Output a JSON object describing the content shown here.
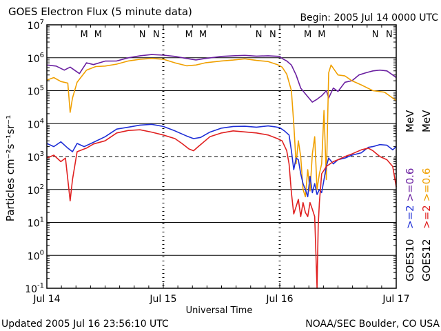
{
  "header": {
    "title": "GOES Electron Flux (5 minute data)",
    "begin": "Begin: 2005 Jul 14 0000 UTC"
  },
  "footer": {
    "updated": "Updated 2005 Jul 16 23:56:10 UTC",
    "source": "NOAA/SEC Boulder, CO USA"
  },
  "legend": {
    "goes10": "GOES10",
    "goes12": "GOES12",
    "mev_top": "MeV",
    "mev_bottom": "MeV",
    "series_labels": [
      {
        "text": ">=2",
        "color": "#1e2ed6"
      },
      {
        "text": ">=0.6",
        "color": "#6a1fa0"
      },
      {
        "text": ">=2",
        "color": "#e02020"
      },
      {
        "text": ">=0.6",
        "color": "#f0a000"
      }
    ]
  },
  "colors": {
    "goes10_2mev": "#1e2ed6",
    "goes10_06mev": "#6a1fa0",
    "goes12_2mev": "#e02020",
    "goes12_06mev": "#f0a000",
    "marker_M": "#c81e1e",
    "marker_N": "#1e2ec8"
  },
  "chart_data": {
    "type": "line",
    "title": "GOES Electron Flux (5 minute data)",
    "xlabel": "Universal Time",
    "ylabel": "Particles cm⁻²s⁻¹sr⁻¹",
    "y_scale": "log",
    "ylim": [
      0.1,
      10000000
    ],
    "xlim": [
      0,
      3
    ],
    "x_unit": "days since 2005 Jul 14 0000 UTC",
    "x_ticks": [
      {
        "x": 0,
        "label": "Jul 14"
      },
      {
        "x": 1,
        "label": "Jul 15"
      },
      {
        "x": 2,
        "label": "Jul 16"
      },
      {
        "x": 3,
        "label": "Jul 17"
      }
    ],
    "y_ticks": [
      {
        "value": 0.1,
        "base": "10",
        "exp": "-1"
      },
      {
        "value": 1,
        "base": "10",
        "exp": "0"
      },
      {
        "value": 10,
        "base": "10",
        "exp": "1"
      },
      {
        "value": 100,
        "base": "10",
        "exp": "2"
      },
      {
        "value": 1000,
        "base": "10",
        "exp": "3"
      },
      {
        "value": 10000,
        "base": "10",
        "exp": "4"
      },
      {
        "value": 100000,
        "base": "10",
        "exp": "5"
      },
      {
        "value": 1000000,
        "base": "10",
        "exp": "6"
      },
      {
        "value": 10000000,
        "base": "10",
        "exp": "7"
      }
    ],
    "grid": "horizontal at each decade; dashed line at 1000",
    "dashed_threshold": 1000,
    "markers": [
      {
        "x": 0.32,
        "label": "M",
        "kind": "M"
      },
      {
        "x": 0.44,
        "label": "M",
        "kind": "M"
      },
      {
        "x": 0.82,
        "label": "N",
        "kind": "N"
      },
      {
        "x": 0.94,
        "label": "N",
        "kind": "N"
      },
      {
        "x": 1.22,
        "label": "M",
        "kind": "M"
      },
      {
        "x": 1.34,
        "label": "M",
        "kind": "M"
      },
      {
        "x": 1.82,
        "label": "N",
        "kind": "N"
      },
      {
        "x": 1.94,
        "label": "N",
        "kind": "N"
      },
      {
        "x": 2.24,
        "label": "M",
        "kind": "M"
      },
      {
        "x": 2.36,
        "label": "M",
        "kind": "M"
      },
      {
        "x": 2.82,
        "label": "N",
        "kind": "N"
      },
      {
        "x": 2.94,
        "label": "N",
        "kind": "N"
      }
    ],
    "series": [
      {
        "name": "GOES10 >=0.6 MeV",
        "color": "#6a1fa0",
        "points": [
          [
            0,
            600000
          ],
          [
            0.08,
            560000
          ],
          [
            0.15,
            420000
          ],
          [
            0.2,
            520000
          ],
          [
            0.28,
            330000
          ],
          [
            0.34,
            700000
          ],
          [
            0.4,
            620000
          ],
          [
            0.5,
            790000
          ],
          [
            0.6,
            800000
          ],
          [
            0.7,
            1000000
          ],
          [
            0.8,
            1150000
          ],
          [
            0.9,
            1250000
          ],
          [
            1.0,
            1200000
          ],
          [
            1.1,
            1100000
          ],
          [
            1.2,
            950000
          ],
          [
            1.28,
            860000
          ],
          [
            1.36,
            950000
          ],
          [
            1.5,
            1100000
          ],
          [
            1.6,
            1150000
          ],
          [
            1.7,
            1180000
          ],
          [
            1.8,
            1120000
          ],
          [
            1.9,
            1150000
          ],
          [
            2.0,
            1100000
          ],
          [
            2.02,
            950000
          ],
          [
            2.06,
            800000
          ],
          [
            2.1,
            600000
          ],
          [
            2.14,
            300000
          ],
          [
            2.18,
            120000
          ],
          [
            2.22,
            80000
          ],
          [
            2.28,
            45000
          ],
          [
            2.32,
            55000
          ],
          [
            2.36,
            70000
          ],
          [
            2.4,
            100000
          ],
          [
            2.42,
            60000
          ],
          [
            2.46,
            120000
          ],
          [
            2.5,
            95000
          ],
          [
            2.56,
            180000
          ],
          [
            2.62,
            200000
          ],
          [
            2.68,
            300000
          ],
          [
            2.74,
            350000
          ],
          [
            2.8,
            400000
          ],
          [
            2.86,
            420000
          ],
          [
            2.92,
            400000
          ],
          [
            2.97,
            300000
          ],
          [
            3.0,
            250000
          ]
        ]
      },
      {
        "name": "GOES12 >=0.6 MeV",
        "color": "#f0a000",
        "points": [
          [
            0,
            210000
          ],
          [
            0.06,
            250000
          ],
          [
            0.12,
            190000
          ],
          [
            0.18,
            170000
          ],
          [
            0.2,
            22000
          ],
          [
            0.22,
            60000
          ],
          [
            0.26,
            180000
          ],
          [
            0.34,
            420000
          ],
          [
            0.42,
            540000
          ],
          [
            0.5,
            560000
          ],
          [
            0.6,
            640000
          ],
          [
            0.7,
            800000
          ],
          [
            0.8,
            900000
          ],
          [
            0.9,
            950000
          ],
          [
            1.0,
            900000
          ],
          [
            1.1,
            700000
          ],
          [
            1.2,
            570000
          ],
          [
            1.28,
            600000
          ],
          [
            1.36,
            700000
          ],
          [
            1.5,
            800000
          ],
          [
            1.6,
            850000
          ],
          [
            1.7,
            930000
          ],
          [
            1.8,
            830000
          ],
          [
            1.9,
            770000
          ],
          [
            1.98,
            620000
          ],
          [
            2.02,
            520000
          ],
          [
            2.06,
            320000
          ],
          [
            2.1,
            100000
          ],
          [
            2.12,
            10000
          ],
          [
            2.14,
            600
          ],
          [
            2.16,
            3000
          ],
          [
            2.18,
            1000
          ],
          [
            2.2,
            100
          ],
          [
            2.22,
            60
          ],
          [
            2.24,
            400
          ],
          [
            2.26,
            90
          ],
          [
            2.28,
            1200
          ],
          [
            2.3,
            4000
          ],
          [
            2.32,
            100
          ],
          [
            2.34,
            300
          ],
          [
            2.36,
            600
          ],
          [
            2.38,
            25000
          ],
          [
            2.4,
            200
          ],
          [
            2.42,
            350000
          ],
          [
            2.44,
            600000
          ],
          [
            2.5,
            300000
          ],
          [
            2.56,
            280000
          ],
          [
            2.62,
            200000
          ],
          [
            2.7,
            150000
          ],
          [
            2.8,
            100000
          ],
          [
            2.9,
            90000
          ],
          [
            3.0,
            50000
          ]
        ]
      },
      {
        "name": "GOES10 >=2 MeV",
        "color": "#1e2ed6",
        "points": [
          [
            0,
            2500
          ],
          [
            0.06,
            2000
          ],
          [
            0.12,
            2800
          ],
          [
            0.18,
            1800
          ],
          [
            0.22,
            1400
          ],
          [
            0.26,
            2500
          ],
          [
            0.32,
            2000
          ],
          [
            0.4,
            2700
          ],
          [
            0.5,
            4000
          ],
          [
            0.6,
            6800
          ],
          [
            0.7,
            7800
          ],
          [
            0.8,
            9000
          ],
          [
            0.9,
            9500
          ],
          [
            1.0,
            8200
          ],
          [
            1.1,
            6000
          ],
          [
            1.2,
            4200
          ],
          [
            1.26,
            3500
          ],
          [
            1.32,
            3800
          ],
          [
            1.4,
            5500
          ],
          [
            1.5,
            7300
          ],
          [
            1.6,
            8200
          ],
          [
            1.7,
            8300
          ],
          [
            1.8,
            7800
          ],
          [
            1.9,
            8500
          ],
          [
            1.96,
            8000
          ],
          [
            2.0,
            7500
          ],
          [
            2.04,
            6000
          ],
          [
            2.08,
            4500
          ],
          [
            2.1,
            1500
          ],
          [
            2.12,
            400
          ],
          [
            2.14,
            900
          ],
          [
            2.16,
            800
          ],
          [
            2.18,
            300
          ],
          [
            2.2,
            150
          ],
          [
            2.22,
            100
          ],
          [
            2.24,
            60
          ],
          [
            2.26,
            250
          ],
          [
            2.28,
            80
          ],
          [
            2.3,
            150
          ],
          [
            2.32,
            70
          ],
          [
            2.34,
            100
          ],
          [
            2.36,
            80
          ],
          [
            2.38,
            200
          ],
          [
            2.4,
            500
          ],
          [
            2.42,
            900
          ],
          [
            2.46,
            600
          ],
          [
            2.5,
            800
          ],
          [
            2.56,
            900
          ],
          [
            2.62,
            1100
          ],
          [
            2.7,
            1300
          ],
          [
            2.76,
            1900
          ],
          [
            2.8,
            2000
          ],
          [
            2.86,
            2300
          ],
          [
            2.92,
            2200
          ],
          [
            2.97,
            1600
          ],
          [
            3.0,
            2000
          ]
        ]
      },
      {
        "name": "GOES12 >=2 MeV",
        "color": "#e02020",
        "points": [
          [
            0,
            900
          ],
          [
            0.06,
            1100
          ],
          [
            0.12,
            700
          ],
          [
            0.16,
            900
          ],
          [
            0.2,
            45
          ],
          [
            0.22,
            200
          ],
          [
            0.26,
            1400
          ],
          [
            0.34,
            1800
          ],
          [
            0.4,
            2400
          ],
          [
            0.5,
            3000
          ],
          [
            0.6,
            5200
          ],
          [
            0.7,
            6200
          ],
          [
            0.8,
            6500
          ],
          [
            0.9,
            5500
          ],
          [
            1.0,
            4500
          ],
          [
            1.1,
            3500
          ],
          [
            1.16,
            2500
          ],
          [
            1.22,
            1700
          ],
          [
            1.26,
            1500
          ],
          [
            1.3,
            2000
          ],
          [
            1.4,
            4000
          ],
          [
            1.5,
            5200
          ],
          [
            1.6,
            6000
          ],
          [
            1.7,
            5600
          ],
          [
            1.8,
            5200
          ],
          [
            1.9,
            4500
          ],
          [
            1.98,
            3500
          ],
          [
            2.02,
            3000
          ],
          [
            2.06,
            1500
          ],
          [
            2.08,
            600
          ],
          [
            2.1,
            80
          ],
          [
            2.12,
            18
          ],
          [
            2.14,
            30
          ],
          [
            2.16,
            50
          ],
          [
            2.18,
            15
          ],
          [
            2.2,
            40
          ],
          [
            2.22,
            20
          ],
          [
            2.24,
            15
          ],
          [
            2.26,
            40
          ],
          [
            2.28,
            25
          ],
          [
            2.3,
            15
          ],
          [
            2.32,
            0.1
          ],
          [
            2.33,
            8
          ],
          [
            2.34,
            40
          ],
          [
            2.36,
            300
          ],
          [
            2.4,
            500
          ],
          [
            2.46,
            700
          ],
          [
            2.5,
            800
          ],
          [
            2.56,
            1000
          ],
          [
            2.62,
            1200
          ],
          [
            2.7,
            1600
          ],
          [
            2.76,
            1800
          ],
          [
            2.8,
            1500
          ],
          [
            2.86,
            1000
          ],
          [
            2.92,
            800
          ],
          [
            2.97,
            500
          ],
          [
            3.0,
            120
          ]
        ]
      }
    ]
  }
}
